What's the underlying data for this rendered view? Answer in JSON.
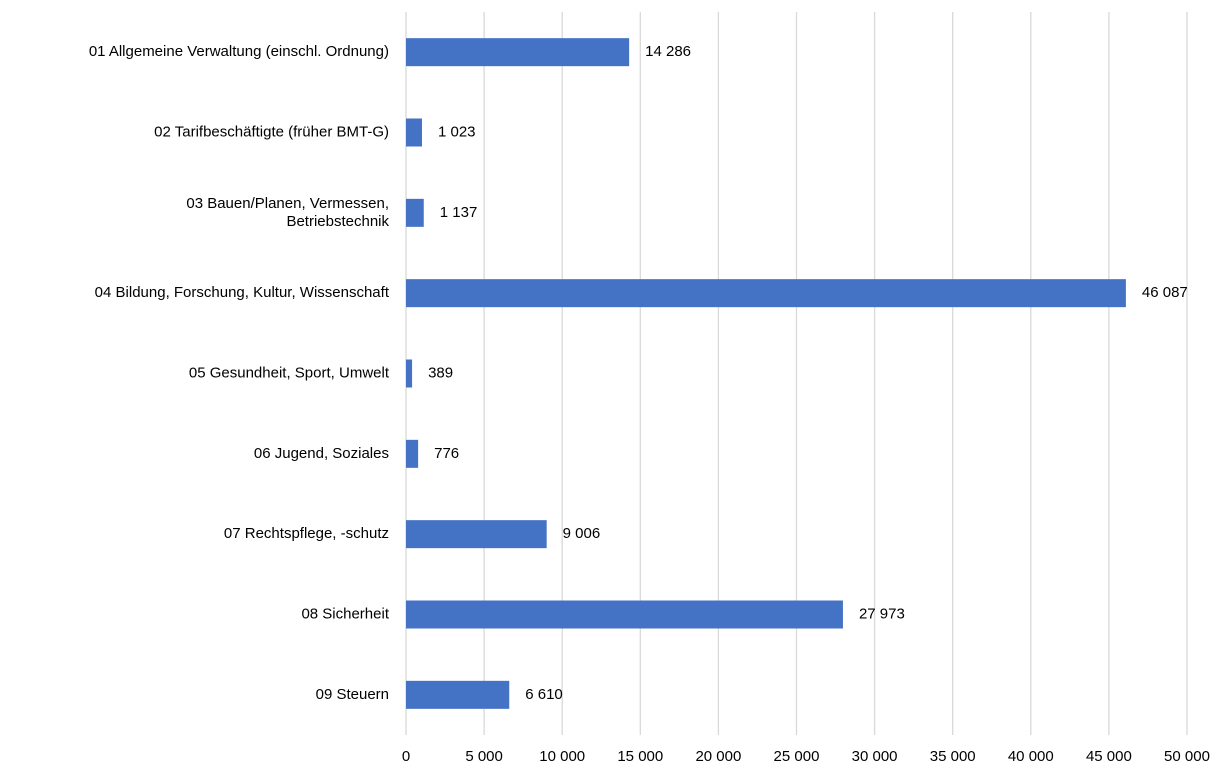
{
  "chart_data": {
    "type": "bar",
    "orientation": "horizontal",
    "categories": [
      "01 Allgemeine Verwaltung (einschl. Ordnung)",
      "02 Tarifbeschäftigte (früher BMT-G)",
      "03 Bauen/Planen, Vermessen,\nBetriebstechnik",
      "04 Bildung, Forschung, Kultur, Wissenschaft",
      "05 Gesundheit, Sport, Umwelt",
      "06 Jugend, Soziales",
      "07 Rechtspflege, -schutz",
      "08 Sicherheit",
      "09 Steuern"
    ],
    "values": [
      14286,
      1023,
      1137,
      46087,
      389,
      776,
      9006,
      27973,
      6610
    ],
    "value_labels": [
      "14 286",
      "1 023",
      "1 137",
      "46 087",
      "389",
      "776",
      "9 006",
      "27 973",
      "6 610"
    ],
    "color": "#4472c4",
    "xlim": [
      0,
      50000
    ],
    "xticks": [
      0,
      {
        "value": 5000,
        "label": "5 000"
      },
      {
        "value": 10000,
        "label": "10 000"
      },
      {
        "value": 15000,
        "label": "15 000"
      },
      {
        "value": 20000,
        "label": "20 000"
      },
      {
        "value": 25000,
        "label": "25 000"
      },
      {
        "value": 30000,
        "label": "30 000"
      },
      {
        "value": 35000,
        "label": "35 000"
      },
      {
        "value": 40000,
        "label": "40 000"
      },
      {
        "value": 45000,
        "label": "45 000"
      },
      {
        "value": 50000,
        "label": "50 000"
      }
    ],
    "grid": true
  }
}
